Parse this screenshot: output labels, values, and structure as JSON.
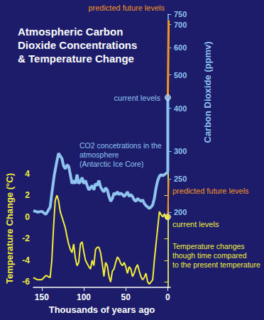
{
  "chart_data": {
    "type": "line",
    "title": "Atmospheric Carbon\nDioxide Concentrations\n& Temperature Change",
    "xlabel": "Thousands of years ago",
    "ylabel": "Carbon Dioxide (ppmv)",
    "y2label": "Temperature Change (°C)",
    "xlim": [
      160,
      -3
    ],
    "xticks": [
      150,
      100,
      50,
      0
    ],
    "ylim": [
      121,
      750
    ],
    "yticks": [
      200,
      250,
      300,
      400,
      500,
      600,
      700,
      750
    ],
    "log": "y",
    "y2lim": [
      -6.5,
      4.5
    ],
    "y2ticks": [
      -6,
      -4,
      -2,
      0,
      2,
      4
    ],
    "grid": false,
    "series": [
      {
        "name": "CO2 concetrations in the\natmosphere\n(Antarctic Ice Core)",
        "type": "line",
        "axis": "y",
        "color": "#8fc3f0",
        "x": [
          160,
          155,
          150,
          145,
          140,
          138,
          135,
          132,
          130,
          128,
          126,
          124,
          122,
          120,
          118,
          116,
          114,
          112,
          110,
          108,
          106,
          104,
          102,
          100,
          98,
          96,
          94,
          92,
          90,
          88,
          86,
          84,
          82,
          80,
          78,
          76,
          74,
          72,
          70,
          68,
          66,
          64,
          62,
          60,
          58,
          56,
          54,
          52,
          50,
          48,
          46,
          44,
          42,
          40,
          38,
          36,
          34,
          32,
          30,
          28,
          26,
          24,
          22,
          20,
          18,
          16,
          14,
          12,
          10,
          8,
          6,
          4,
          2,
          0,
          0
        ],
        "values": [
          202,
          200,
          201,
          197,
          207,
          227,
          257,
          281,
          296,
          291,
          286,
          272,
          267,
          274,
          272,
          257,
          242,
          247,
          242,
          257,
          242,
          245,
          252,
          242,
          247,
          239,
          232,
          235,
          239,
          232,
          242,
          239,
          247,
          237,
          232,
          229,
          235,
          232,
          222,
          215,
          219,
          227,
          225,
          229,
          225,
          227,
          225,
          222,
          225,
          229,
          222,
          225,
          222,
          217,
          215,
          219,
          217,
          215,
          217,
          212,
          209,
          207,
          205,
          207,
          210,
          219,
          235,
          247,
          254,
          257,
          255,
          257,
          259,
          262,
          430
        ]
      },
      {
        "name": "current levels",
        "type": "scatter",
        "axis": "y",
        "color": "#8fc3f0",
        "marker": "circle",
        "x": [
          0
        ],
        "values": [
          430
        ]
      },
      {
        "name": "predicted future levels",
        "type": "line",
        "axis": "y",
        "color": "#f7941d",
        "x": [
          0,
          -1
        ],
        "values": [
          430,
          720
        ]
      },
      {
        "name": "Temperature changes\nthough time compared\nto the present temperature",
        "type": "line",
        "axis": "y2",
        "color": "#f2ee3a",
        "x": [
          160,
          155,
          150,
          145,
          140,
          138,
          136,
          134,
          132,
          130,
          128,
          126,
          124,
          122,
          120,
          118,
          116,
          114,
          112,
          110,
          108,
          106,
          104,
          102,
          100,
          98,
          96,
          94,
          92,
          90,
          88,
          86,
          84,
          82,
          80,
          78,
          76,
          74,
          72,
          70,
          68,
          66,
          64,
          62,
          60,
          58,
          56,
          54,
          52,
          50,
          48,
          46,
          44,
          42,
          40,
          38,
          36,
          34,
          32,
          30,
          28,
          26,
          24,
          22,
          20,
          18,
          16,
          14,
          12,
          10,
          8,
          6,
          4,
          2,
          0
        ],
        "values": [
          -5.6,
          -5.8,
          -5.8,
          -5.4,
          -5.6,
          -4,
          -1,
          1.5,
          2,
          1.5,
          0.5,
          0,
          -0.5,
          -1,
          -1.8,
          -2.5,
          -3,
          -3.3,
          -2.5,
          -3.8,
          -4.5,
          -4.2,
          -2.5,
          -2.3,
          -3.2,
          -4,
          -4.3,
          -4.6,
          -4.8,
          -4,
          -4.5,
          -3,
          -2.8,
          -2.8,
          -3.3,
          -4.3,
          -5.5,
          -4.2,
          -4.5,
          -5.5,
          -6,
          -5,
          -4.8,
          -4.2,
          -3.7,
          -3.9,
          -4.3,
          -4.5,
          -4.2,
          -4.6,
          -5.2,
          -4.6,
          -4.8,
          -5.5,
          -5.2,
          -4.7,
          -4.4,
          -5,
          -5.5,
          -5.8,
          -5.6,
          -5.2,
          -6,
          -6.2,
          -6,
          -5.8,
          -4,
          -2.5,
          -1,
          0.5,
          0.2,
          0,
          0.3,
          -0.2,
          0
        ]
      },
      {
        "name": "current levels",
        "type": "scatter",
        "axis": "y2",
        "color": "#f2ee3a",
        "marker": "circle",
        "x": [
          0
        ],
        "values": [
          0
        ]
      },
      {
        "name": "predicted future levels",
        "type": "line",
        "axis": "y2",
        "color": "#f7941d",
        "x": [
          0,
          -1
        ],
        "values": [
          0,
          3.5
        ]
      }
    ]
  }
}
